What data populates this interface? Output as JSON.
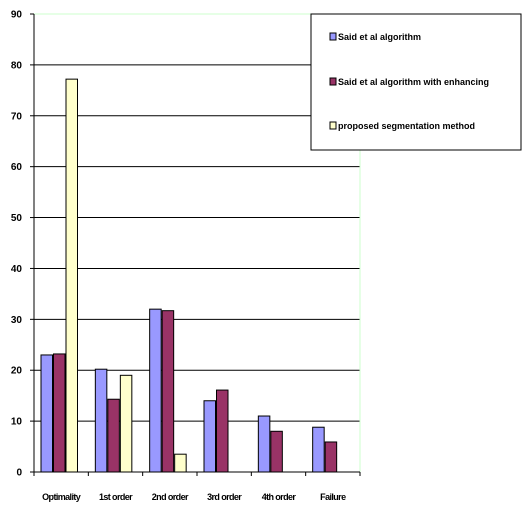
{
  "chart_data": {
    "type": "bar",
    "categories": [
      "Optimality",
      "1st order",
      "2nd order",
      "3rd order",
      "4th order",
      "Failure"
    ],
    "series": [
      {
        "name": "Said et al algorithm",
        "values": [
          23,
          20.2,
          32,
          14,
          11,
          8.8
        ],
        "color": "#9999ff"
      },
      {
        "name": "Said et al algorithm with enhancing",
        "values": [
          23.2,
          14.3,
          31.7,
          16.1,
          8,
          5.9
        ],
        "color": "#993366"
      },
      {
        "name": "proposed segmentation method",
        "values": [
          77.2,
          19,
          3.5,
          0,
          0,
          0
        ],
        "color": "#ffffcc"
      }
    ],
    "ylim": [
      0,
      90
    ],
    "yticks": [
      "0",
      "10",
      "20",
      "30",
      "40",
      "50",
      "60",
      "70",
      "80",
      "90"
    ],
    "grid": true,
    "legend_position": "top-right",
    "plot_border_color": "#ccffcc",
    "title": "",
    "xlabel": "",
    "ylabel": ""
  }
}
